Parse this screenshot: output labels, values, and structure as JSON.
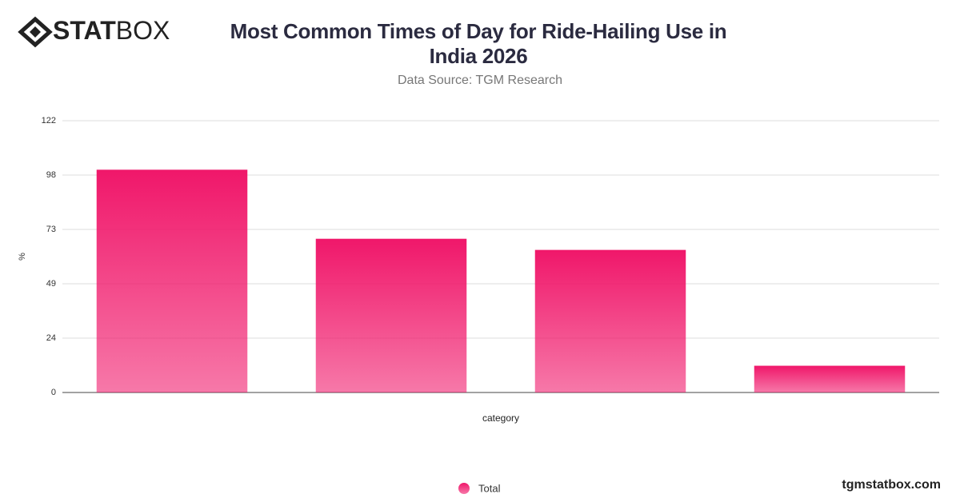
{
  "brand": {
    "bold": "STAT",
    "light": "BOX"
  },
  "footer": "tgmstatbox.com",
  "chart_data": {
    "type": "bar",
    "title": "Most Common Times of Day for Ride-Hailing Use in India 2026",
    "subtitle": "Data Source: TGM Research",
    "x_label": "category",
    "y_label": "%",
    "categories": [
      null,
      null,
      null,
      null
    ],
    "series": [
      {
        "name": "Total",
        "color": "#f0176a",
        "values": [
          100,
          69,
          64,
          12
        ]
      }
    ],
    "ylim": [
      0,
      122
    ],
    "yticks": [
      0,
      {
        "value": 24.4,
        "label": "24"
      },
      {
        "value": 48.8,
        "label": "49"
      },
      {
        "value": 73.2,
        "label": "73"
      },
      {
        "value": 97.6,
        "label": "98"
      },
      122
    ],
    "grid": true
  }
}
